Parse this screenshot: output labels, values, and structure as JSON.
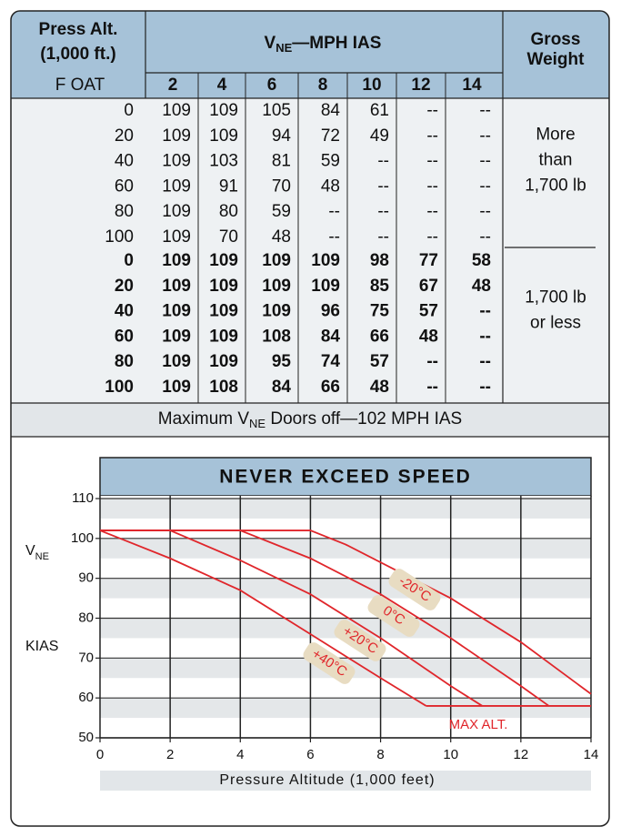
{
  "table": {
    "header": {
      "press_alt": [
        "Press Alt.",
        "(1,000 ft.)"
      ],
      "vne": {
        "main": "V",
        "sub": "NE",
        "rest": "—MPH IAS"
      },
      "gross_weight": [
        "Gross",
        "Weight"
      ],
      "oat": "F OAT",
      "altitudes": [
        2,
        4,
        6,
        8,
        10,
        12,
        14
      ]
    },
    "groups": [
      {
        "weight": [
          "More",
          "than",
          "1,700 lb"
        ],
        "bold": false,
        "rows": [
          [
            0,
            109,
            109,
            105,
            84,
            61,
            "--",
            "--"
          ],
          [
            20,
            109,
            109,
            94,
            72,
            49,
            "--",
            "--"
          ],
          [
            40,
            109,
            103,
            81,
            59,
            "--",
            "--",
            "--"
          ],
          [
            60,
            109,
            91,
            70,
            48,
            "--",
            "--",
            "--"
          ],
          [
            80,
            109,
            80,
            59,
            "--",
            "--",
            "--",
            "--"
          ],
          [
            100,
            109,
            70,
            48,
            "--",
            "--",
            "--",
            "--"
          ]
        ]
      },
      {
        "weight": [
          "1,700 lb",
          "or less"
        ],
        "bold": true,
        "rows": [
          [
            0,
            109,
            109,
            109,
            109,
            98,
            77,
            58
          ],
          [
            20,
            109,
            109,
            109,
            109,
            85,
            67,
            48
          ],
          [
            40,
            109,
            109,
            109,
            96,
            75,
            57,
            "--"
          ],
          [
            60,
            109,
            109,
            108,
            84,
            66,
            48,
            "--"
          ],
          [
            80,
            109,
            109,
            95,
            74,
            57,
            "--",
            "--"
          ],
          [
            100,
            109,
            108,
            84,
            66,
            48,
            "--",
            "--"
          ]
        ]
      }
    ],
    "footer": {
      "main": "Maximum V",
      "sub": "NE",
      "rest": " Doors off—102 MPH IAS"
    }
  },
  "chart_data": {
    "type": "line",
    "title": "NEVER EXCEED SPEED",
    "xlabel": "Pressure Altitude (1,000 feet)",
    "ylabel": {
      "main": "V",
      "sub": "NE",
      "unit": "KIAS"
    },
    "xlim": [
      0,
      14
    ],
    "xticks": [
      0,
      2,
      4,
      6,
      8,
      10,
      12,
      14
    ],
    "ylim": [
      50,
      110
    ],
    "yticks": [
      50,
      60,
      70,
      80,
      90,
      100,
      110
    ],
    "grid": true,
    "series": [
      {
        "name": "-20°C",
        "color": "#e0262b",
        "x": [
          0,
          6,
          7,
          10,
          12,
          14
        ],
        "values": [
          102,
          102,
          98.5,
          85,
          74,
          61
        ]
      },
      {
        "name": "0°C",
        "color": "#e0262b",
        "x": [
          0,
          4,
          6,
          8,
          10,
          12,
          12.8
        ],
        "values": [
          102,
          102,
          95,
          86,
          75,
          63,
          58
        ]
      },
      {
        "name": "+20°C",
        "color": "#e0262b",
        "x": [
          0,
          2,
          4,
          6,
          8,
          10,
          10.9
        ],
        "values": [
          102,
          102,
          94.5,
          86,
          75,
          63,
          58
        ]
      },
      {
        "name": "+40°C",
        "color": "#e0262b",
        "x": [
          0,
          2,
          4,
          6,
          8,
          9.3
        ],
        "values": [
          102,
          95,
          87,
          76,
          65,
          58
        ]
      },
      {
        "name": "MAX ALT.",
        "color": "#e0262b",
        "x": [
          9.3,
          14
        ],
        "values": [
          58,
          58
        ]
      }
    ]
  }
}
